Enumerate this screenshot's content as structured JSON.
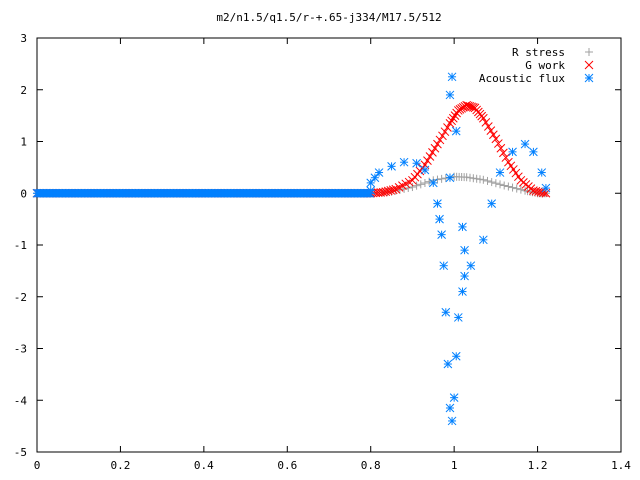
{
  "chart_data": {
    "type": "scatter",
    "title": "m2/n1.5/q1.5/r-+.65-j334/M17.5/512",
    "xlabel": "",
    "ylabel": "",
    "xlim": [
      0,
      1.4
    ],
    "ylim": [
      -5,
      3
    ],
    "x_ticks": [
      "0",
      "0.2",
      "0.4",
      "0.6",
      "0.8",
      "1",
      "1.2",
      "1.4"
    ],
    "y_ticks": [
      "3",
      "2",
      "1",
      "0",
      "-1",
      "-2",
      "-3",
      "-4",
      "-5"
    ],
    "grid": false,
    "legend_position": "top-right",
    "series": [
      {
        "name": "R stress",
        "marker": "plus",
        "color": "#a0a0a0",
        "points": [
          [
            0.8,
            0.0
          ],
          [
            0.85,
            0.03
          ],
          [
            0.9,
            0.12
          ],
          [
            0.95,
            0.25
          ],
          [
            1.0,
            0.32
          ],
          [
            1.03,
            0.31
          ],
          [
            1.07,
            0.26
          ],
          [
            1.12,
            0.15
          ],
          [
            1.17,
            0.05
          ],
          [
            1.2,
            0.0
          ],
          [
            1.22,
            0.0
          ]
        ]
      },
      {
        "name": "G work",
        "marker": "cross",
        "color": "#ff0000",
        "points": [
          [
            0.8,
            0.0
          ],
          [
            0.83,
            0.02
          ],
          [
            0.86,
            0.08
          ],
          [
            0.9,
            0.25
          ],
          [
            0.93,
            0.55
          ],
          [
            0.96,
            0.95
          ],
          [
            0.99,
            1.35
          ],
          [
            1.01,
            1.6
          ],
          [
            1.03,
            1.7
          ],
          [
            1.05,
            1.65
          ],
          [
            1.07,
            1.45
          ],
          [
            1.1,
            1.05
          ],
          [
            1.13,
            0.6
          ],
          [
            1.16,
            0.25
          ],
          [
            1.19,
            0.05
          ],
          [
            1.22,
            0.0
          ]
        ]
      },
      {
        "name": "Acoustic flux",
        "marker": "star",
        "color": "#0080ff",
        "points": [
          [
            0.8,
            0.05
          ],
          [
            0.8,
            0.2
          ],
          [
            0.81,
            0.3
          ],
          [
            0.82,
            0.4
          ],
          [
            0.85,
            0.52
          ],
          [
            0.88,
            0.6
          ],
          [
            0.91,
            0.58
          ],
          [
            0.93,
            0.45
          ],
          [
            0.95,
            0.2
          ],
          [
            0.96,
            -0.2
          ],
          [
            0.965,
            -0.5
          ],
          [
            0.97,
            -0.8
          ],
          [
            0.975,
            -1.4
          ],
          [
            0.98,
            -2.3
          ],
          [
            0.985,
            -3.3
          ],
          [
            0.99,
            -4.15
          ],
          [
            0.995,
            -4.4
          ],
          [
            1.0,
            -3.95
          ],
          [
            1.005,
            -3.15
          ],
          [
            1.01,
            -2.4
          ],
          [
            1.02,
            -1.9
          ],
          [
            1.025,
            -1.6
          ],
          [
            1.04,
            -1.4
          ],
          [
            1.07,
            -0.9
          ],
          [
            1.09,
            -0.2
          ],
          [
            1.11,
            0.4
          ],
          [
            1.14,
            0.8
          ],
          [
            1.17,
            0.95
          ],
          [
            1.19,
            0.8
          ],
          [
            1.21,
            0.4
          ],
          [
            1.22,
            0.1
          ],
          [
            0.99,
            0.3
          ],
          [
            0.99,
            1.9
          ],
          [
            0.995,
            2.25
          ],
          [
            1.005,
            1.2
          ],
          [
            1.02,
            -0.65
          ],
          [
            1.025,
            -1.1
          ]
        ]
      }
    ]
  }
}
